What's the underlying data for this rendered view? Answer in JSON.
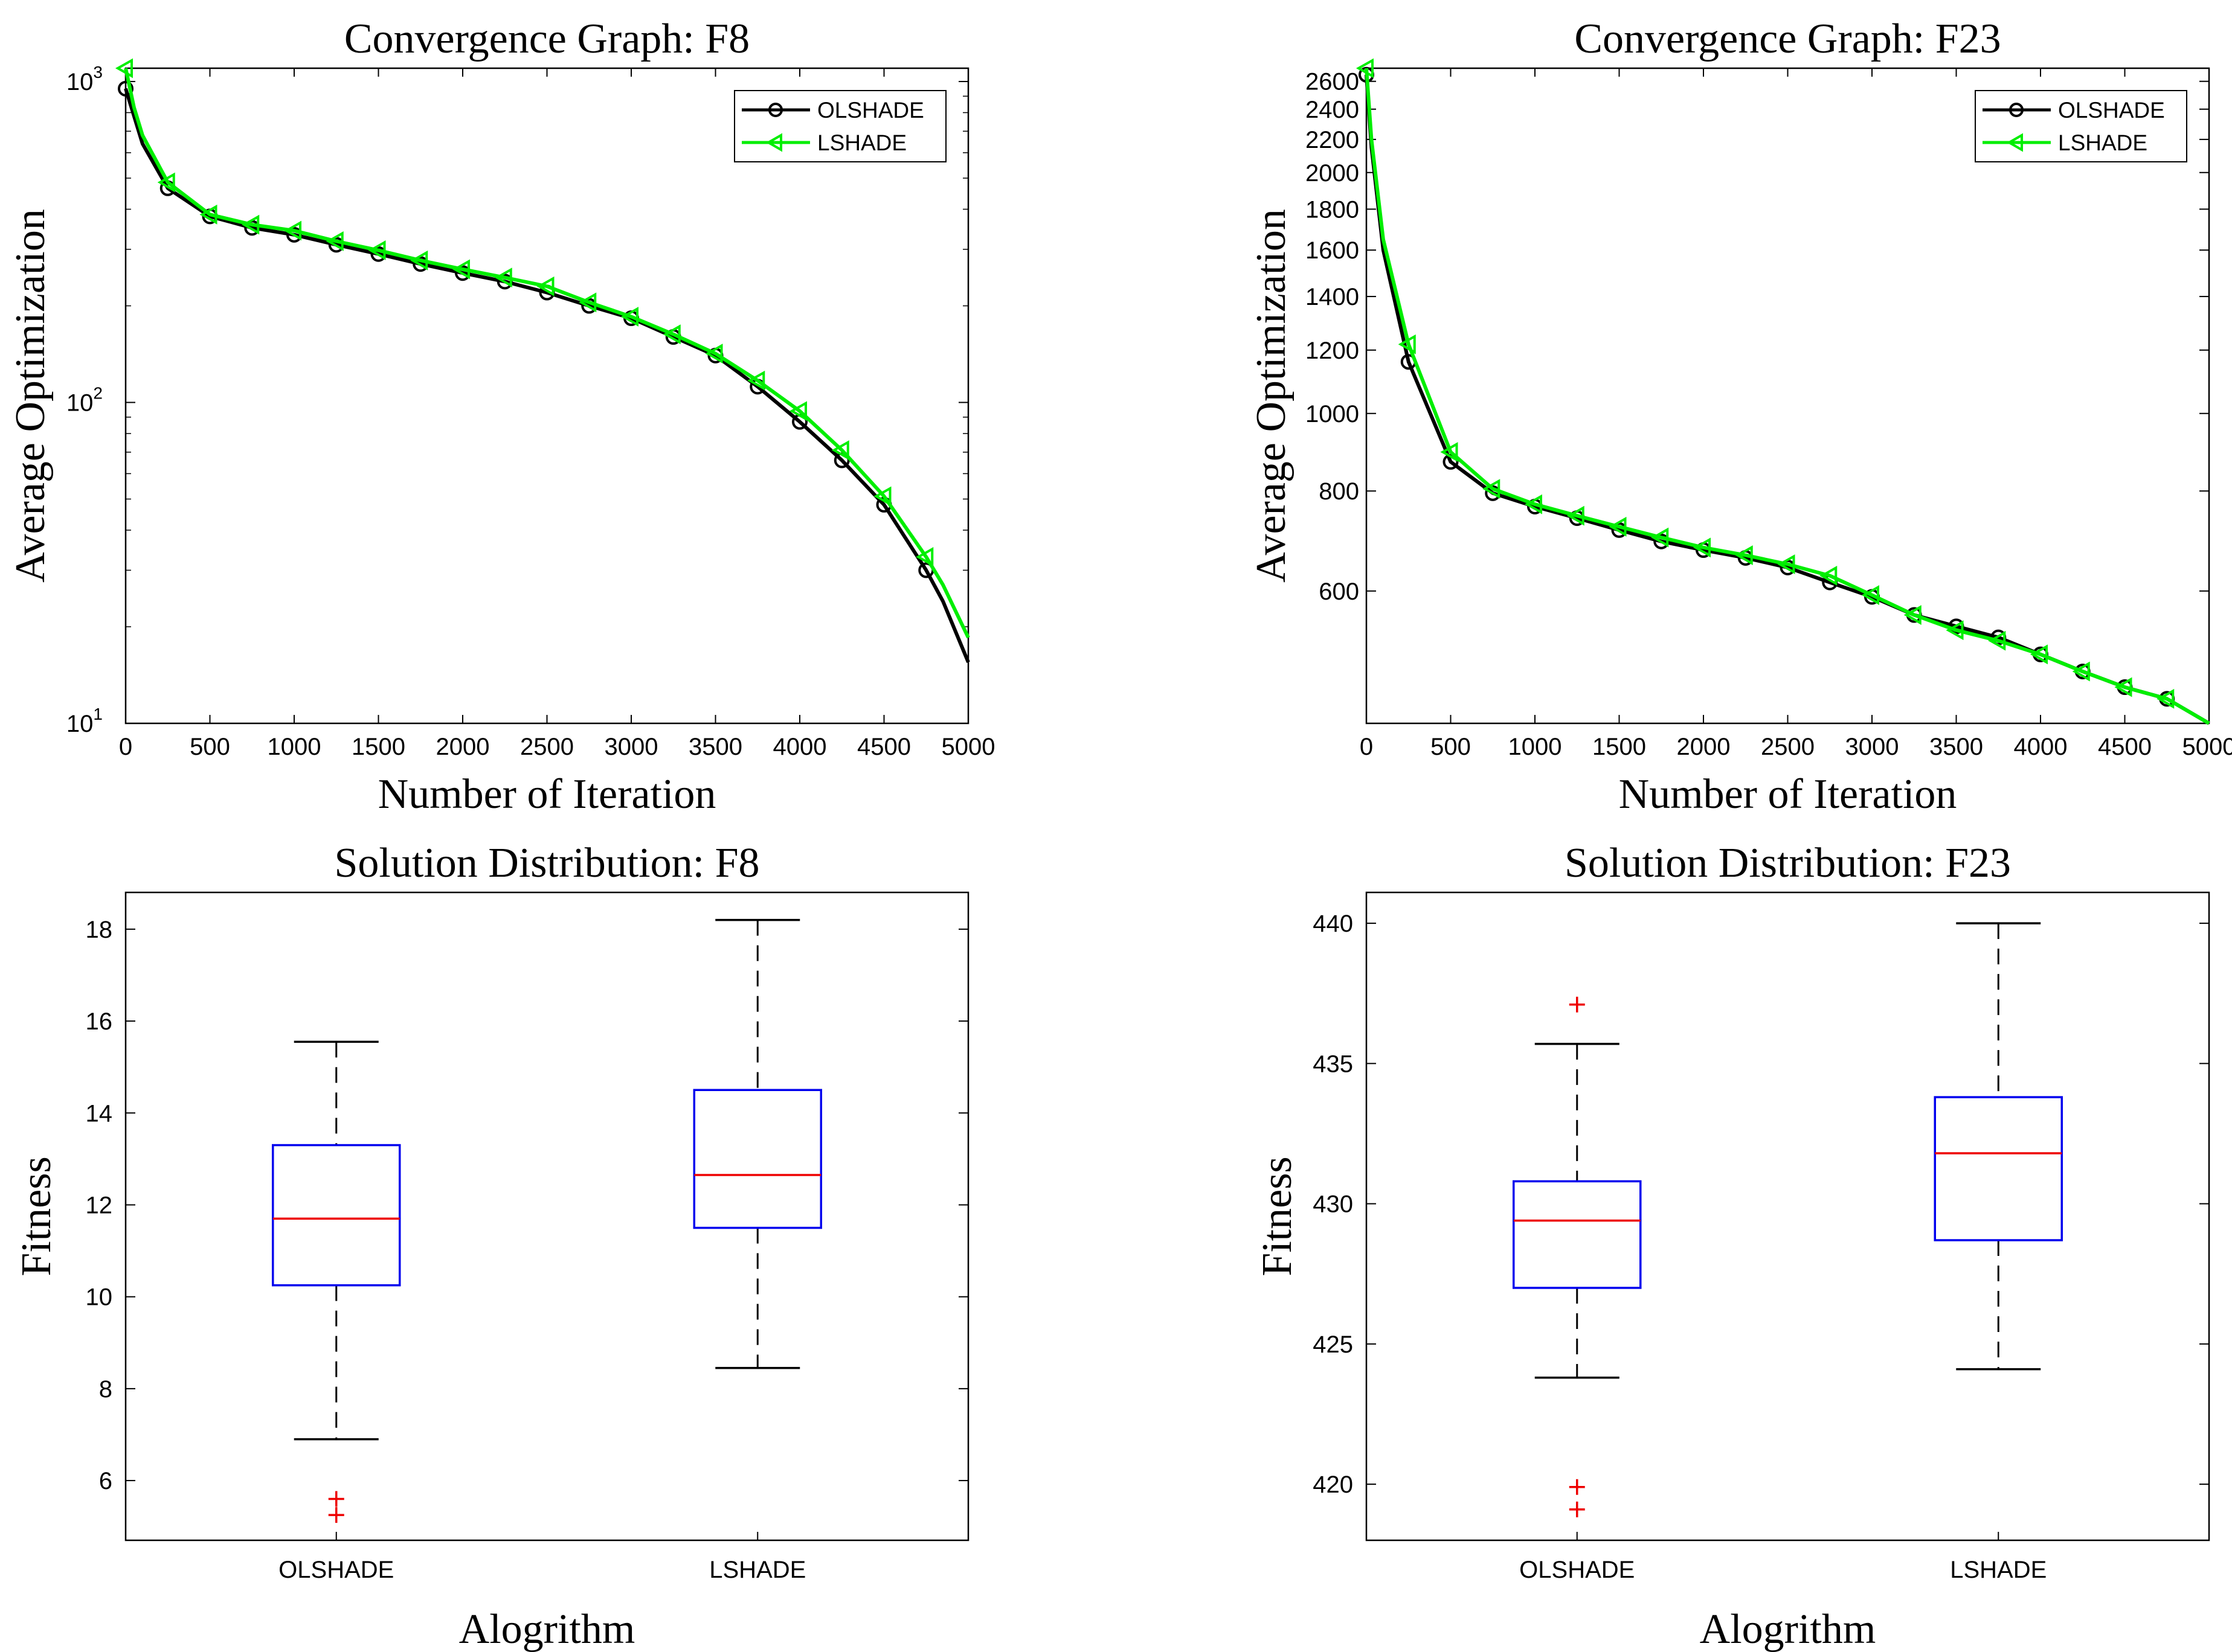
{
  "colors": {
    "olshade": "#000000",
    "lshade": "#00ee00",
    "box": "#0000ee",
    "median": "#ee0000",
    "outlier": "#ee0000",
    "axis": "#000000"
  },
  "chart_data": [
    {
      "type": "line",
      "id": "conv-f8",
      "title": "Convergence Graph: F8",
      "xlabel": "Number of Iteration",
      "ylabel": "Average Optimization",
      "xscale": "linear",
      "yscale": "log",
      "xlim": [
        0,
        5000
      ],
      "ylim": [
        10,
        1100
      ],
      "xticks": [
        0,
        500,
        1000,
        1500,
        2000,
        2500,
        3000,
        3500,
        4000,
        4500,
        5000
      ],
      "yticks": [
        {
          "value": 10,
          "base": "10",
          "exp": "1"
        },
        {
          "value": 100,
          "base": "10",
          "exp": "2"
        },
        {
          "value": 1000,
          "base": "10",
          "exp": "3"
        }
      ],
      "legend": {
        "location": "top-right"
      },
      "series": [
        {
          "name": "OLSHADE",
          "marker": "circle",
          "x": [
            0,
            50,
            100,
            250,
            500,
            750,
            1000,
            1250,
            1500,
            1750,
            2000,
            2250,
            2500,
            2750,
            3000,
            3250,
            3500,
            3750,
            4000,
            4250,
            4500,
            4750,
            4850,
            5000
          ],
          "y": [
            950,
            780,
            640,
            465,
            380,
            350,
            333,
            310,
            290,
            270,
            253,
            238,
            220,
            200,
            183,
            160,
            140,
            112,
            87,
            66,
            48,
            30,
            24,
            15.5
          ],
          "markers_x": [
            0,
            250,
            500,
            750,
            1000,
            1250,
            1500,
            1750,
            2000,
            2250,
            2500,
            2750,
            3000,
            3250,
            3500,
            3750,
            4000,
            4250,
            4500,
            4750
          ]
        },
        {
          "name": "LSHADE",
          "marker": "triangle-left",
          "x": [
            0,
            50,
            100,
            250,
            500,
            750,
            1000,
            1250,
            1500,
            1750,
            2000,
            2250,
            2500,
            2750,
            3000,
            3250,
            3500,
            3750,
            4000,
            4250,
            4500,
            4750,
            4850,
            5000
          ],
          "y": [
            1100,
            830,
            680,
            485,
            385,
            358,
            343,
            318,
            298,
            277,
            260,
            245,
            230,
            205,
            185,
            163,
            142,
            117,
            94,
            71,
            51,
            33,
            27,
            18.5
          ],
          "markers_x": [
            0,
            250,
            500,
            750,
            1000,
            1250,
            1500,
            1750,
            2000,
            2250,
            2500,
            2750,
            3000,
            3250,
            3500,
            3750,
            4000,
            4250,
            4500,
            4750
          ]
        }
      ]
    },
    {
      "type": "line",
      "id": "conv-f23",
      "title": "Convergence Graph: F23",
      "xlabel": "Number of Iteration",
      "ylabel": "Average Optimization",
      "xscale": "linear",
      "yscale": "log",
      "xlim": [
        0,
        5000
      ],
      "ylim": [
        410,
        2700
      ],
      "xticks": [
        0,
        500,
        1000,
        1500,
        2000,
        2500,
        3000,
        3500,
        4000,
        4500,
        5000
      ],
      "yticks": [
        {
          "value": 600,
          "label": "600"
        },
        {
          "value": 800,
          "label": "800"
        },
        {
          "value": 1000,
          "label": "1000"
        },
        {
          "value": 1200,
          "label": "1200"
        },
        {
          "value": 1400,
          "label": "1400"
        },
        {
          "value": 1600,
          "label": "1600"
        },
        {
          "value": 1800,
          "label": "1800"
        },
        {
          "value": 2000,
          "label": "2000"
        },
        {
          "value": 2200,
          "label": "2200"
        },
        {
          "value": 2400,
          "label": "2400"
        },
        {
          "value": 2600,
          "label": "2600"
        }
      ],
      "legend": {
        "location": "top-right"
      },
      "series": [
        {
          "name": "OLSHADE",
          "marker": "circle",
          "x": [
            0,
            30,
            100,
            250,
            500,
            750,
            1000,
            1250,
            1500,
            1750,
            2000,
            2250,
            2500,
            2750,
            3000,
            3250,
            3500,
            3750,
            4000,
            4250,
            4500,
            4750,
            5000
          ],
          "y": [
            2650,
            2150,
            1600,
            1160,
            870,
            795,
            765,
            740,
            715,
            692,
            675,
            660,
            642,
            615,
            590,
            560,
            542,
            525,
            500,
            476,
            455,
            440,
            410
          ],
          "markers_x": [
            0,
            250,
            500,
            750,
            1000,
            1250,
            1500,
            1750,
            2000,
            2250,
            2500,
            2750,
            3000,
            3250,
            3500,
            3750,
            4000,
            4250,
            4500,
            4750
          ]
        },
        {
          "name": "LSHADE",
          "marker": "triangle-left",
          "x": [
            0,
            30,
            100,
            250,
            500,
            750,
            1000,
            1250,
            1500,
            1750,
            2000,
            2250,
            2500,
            2750,
            3000,
            3250,
            3500,
            3750,
            4000,
            4250,
            4500,
            4750,
            5000
          ],
          "y": [
            2700,
            2200,
            1650,
            1220,
            895,
            805,
            770,
            745,
            722,
            700,
            680,
            665,
            648,
            627,
            593,
            560,
            536,
            520,
            500,
            476,
            455,
            440,
            410
          ],
          "markers_x": [
            0,
            250,
            500,
            750,
            1000,
            1250,
            1500,
            1750,
            2000,
            2250,
            2500,
            2750,
            3000,
            3250,
            3500,
            3750,
            4000,
            4250,
            4500,
            4750
          ]
        }
      ]
    },
    {
      "type": "box",
      "id": "box-f8",
      "title": "Solution Distribution: F8",
      "xlabel": "Alogrithm",
      "ylabel": "Fitness",
      "ylim": [
        4.7,
        18.8
      ],
      "yticks": [
        6,
        8,
        10,
        12,
        14,
        16,
        18
      ],
      "categories": [
        "OLSHADE",
        "LSHADE"
      ],
      "boxes": [
        {
          "name": "OLSHADE",
          "whisker_low": 6.9,
          "q1": 10.25,
          "median": 11.7,
          "q3": 13.3,
          "whisker_high": 15.55,
          "outliers": [
            5.25,
            5.6
          ]
        },
        {
          "name": "LSHADE",
          "whisker_low": 8.45,
          "q1": 11.5,
          "median": 12.65,
          "q3": 14.5,
          "whisker_high": 18.2,
          "outliers": []
        }
      ]
    },
    {
      "type": "box",
      "id": "box-f23",
      "title": "Solution Distribution: F23",
      "xlabel": "Alogrithm",
      "ylabel": "Fitness",
      "ylim": [
        418,
        441.1
      ],
      "yticks": [
        420,
        425,
        430,
        435,
        440
      ],
      "categories": [
        "OLSHADE",
        "LSHADE"
      ],
      "boxes": [
        {
          "name": "OLSHADE",
          "whisker_low": 423.8,
          "q1": 427.0,
          "median": 429.4,
          "q3": 430.8,
          "whisker_high": 435.7,
          "outliers": [
            437.1,
            419.9,
            419.1
          ]
        },
        {
          "name": "LSHADE",
          "whisker_low": 424.1,
          "q1": 428.7,
          "median": 431.8,
          "q3": 433.8,
          "whisker_high": 440.0,
          "outliers": []
        }
      ]
    }
  ]
}
